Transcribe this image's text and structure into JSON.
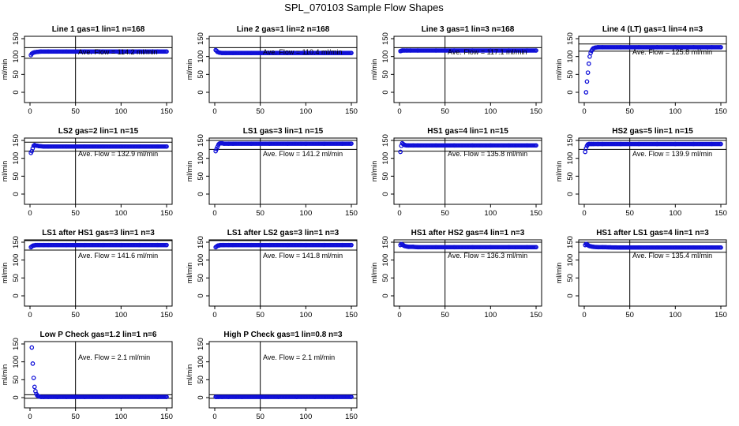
{
  "figure_title": "SPL_070103  Sample Flow Shapes",
  "chart_data": [
    {
      "type": "scatter",
      "title": "Line 1 gas=1 lin=1 n=168",
      "ylabel": "ml/min",
      "xlim": [
        0,
        150
      ],
      "ylim": [
        0,
        150
      ],
      "x_ticks": [
        0,
        50,
        100,
        150
      ],
      "y_ticks": [
        0,
        50,
        100,
        150
      ],
      "vline_x": 50,
      "hlines": [
        95,
        125
      ],
      "annotation": "Ave. Flow =  114.2  ml/min",
      "series": [
        {
          "x": [
            1,
            2,
            3,
            5,
            8,
            12,
            20,
            40,
            60,
            80,
            100,
            120,
            140,
            150
          ],
          "y": [
            104,
            108,
            110,
            112,
            113,
            114,
            114,
            114,
            114,
            114,
            114,
            114,
            114,
            114
          ]
        }
      ]
    },
    {
      "type": "scatter",
      "title": "Line 2 gas=1 lin=2 n=168",
      "ylabel": "ml/min",
      "xlim": [
        0,
        150
      ],
      "ylim": [
        0,
        150
      ],
      "x_ticks": [
        0,
        50,
        100,
        150
      ],
      "y_ticks": [
        0,
        50,
        100,
        150
      ],
      "vline_x": 50,
      "hlines": [
        95,
        125
      ],
      "annotation": "Ave. Flow =  110.4  ml/min",
      "series": [
        {
          "x": [
            1,
            2,
            3,
            5,
            8,
            12,
            20,
            40,
            60,
            80,
            100,
            120,
            140,
            150
          ],
          "y": [
            118,
            116,
            113,
            111,
            110,
            110,
            110,
            110,
            110,
            110,
            110,
            110,
            110,
            110
          ]
        }
      ]
    },
    {
      "type": "scatter",
      "title": "Line 3 gas=1 lin=3 n=168",
      "ylabel": "ml/min",
      "xlim": [
        0,
        150
      ],
      "ylim": [
        0,
        150
      ],
      "x_ticks": [
        0,
        50,
        100,
        150
      ],
      "y_ticks": [
        0,
        50,
        100,
        150
      ],
      "vline_x": 50,
      "hlines": [
        95,
        125
      ],
      "annotation": "Ave. Flow =  117.1  ml/min",
      "series": [
        {
          "x": [
            1,
            2,
            3,
            5,
            8,
            12,
            20,
            40,
            60,
            80,
            100,
            120,
            140,
            150
          ],
          "y": [
            115,
            116,
            117,
            117,
            117,
            117,
            117,
            117,
            117,
            117,
            117,
            117,
            117,
            117
          ]
        }
      ]
    },
    {
      "type": "scatter",
      "title": "Line 4 (LT) gas=1 lin=4 n=3",
      "ylabel": "ml/min",
      "xlim": [
        0,
        150
      ],
      "ylim": [
        0,
        150
      ],
      "x_ticks": [
        0,
        50,
        100,
        150
      ],
      "y_ticks": [
        0,
        50,
        100,
        150
      ],
      "vline_x": 50,
      "hlines": [
        115,
        135
      ],
      "annotation": "Ave. Flow =  125.8  ml/min",
      "series": [
        {
          "x": [
            2,
            3,
            4,
            5,
            6,
            7,
            8,
            9,
            10,
            12,
            15,
            20,
            40,
            60,
            80,
            100,
            120,
            140,
            150
          ],
          "y": [
            0,
            30,
            55,
            80,
            100,
            110,
            116,
            120,
            123,
            125,
            126,
            126,
            126,
            126,
            126,
            126,
            126,
            126,
            126
          ]
        }
      ]
    },
    {
      "type": "scatter",
      "title": "LS2 gas=2 lin=1 n=15",
      "ylabel": "ml/min",
      "xlim": [
        0,
        150
      ],
      "ylim": [
        0,
        150
      ],
      "x_ticks": [
        0,
        50,
        100,
        150
      ],
      "y_ticks": [
        0,
        50,
        100,
        150
      ],
      "vline_x": 50,
      "hlines": [
        120,
        145
      ],
      "annotation": "Ave. Flow =  132.9  ml/min",
      "series": [
        {
          "x": [
            1,
            2,
            3,
            4,
            5,
            6,
            8,
            10,
            15,
            20,
            40,
            60,
            80,
            100,
            120,
            140,
            150
          ],
          "y": [
            115,
            120,
            128,
            135,
            137,
            136,
            135,
            134,
            133,
            133,
            133,
            133,
            133,
            133,
            133,
            133,
            133
          ]
        }
      ]
    },
    {
      "type": "scatter",
      "title": "LS1 gas=3 lin=1 n=15",
      "ylabel": "ml/min",
      "xlim": [
        0,
        150
      ],
      "ylim": [
        0,
        150
      ],
      "x_ticks": [
        0,
        50,
        100,
        150
      ],
      "y_ticks": [
        0,
        50,
        100,
        150
      ],
      "vline_x": 50,
      "hlines": [
        125,
        150
      ],
      "annotation": "Ave. Flow =  141.2  ml/min",
      "series": [
        {
          "x": [
            1,
            2,
            3,
            4,
            5,
            6,
            8,
            10,
            15,
            20,
            40,
            60,
            80,
            100,
            120,
            140,
            150
          ],
          "y": [
            120,
            126,
            132,
            138,
            141,
            142,
            142,
            141,
            141,
            141,
            141,
            141,
            141,
            141,
            141,
            141,
            141
          ]
        }
      ]
    },
    {
      "type": "scatter",
      "title": "HS1 gas=4 lin=1 n=15",
      "ylabel": "ml/min",
      "xlim": [
        0,
        150
      ],
      "ylim": [
        0,
        150
      ],
      "x_ticks": [
        0,
        50,
        100,
        150
      ],
      "y_ticks": [
        0,
        50,
        100,
        150
      ],
      "vline_x": 50,
      "hlines": [
        120,
        150
      ],
      "annotation": "Ave. Flow =  135.8  ml/min",
      "series": [
        {
          "x": [
            1,
            2,
            3,
            4,
            5,
            6,
            8,
            10,
            15,
            20,
            40,
            60,
            80,
            100,
            120,
            140,
            150
          ],
          "y": [
            118,
            135,
            142,
            140,
            138,
            137,
            136,
            136,
            136,
            136,
            136,
            136,
            136,
            136,
            136,
            136,
            136
          ]
        }
      ]
    },
    {
      "type": "scatter",
      "title": "HS2 gas=5 lin=1 n=15",
      "ylabel": "ml/min",
      "xlim": [
        0,
        150
      ],
      "ylim": [
        0,
        150
      ],
      "x_ticks": [
        0,
        50,
        100,
        150
      ],
      "y_ticks": [
        0,
        50,
        100,
        150
      ],
      "vline_x": 50,
      "hlines": [
        125,
        150
      ],
      "annotation": "Ave. Flow =  139.9  ml/min",
      "series": [
        {
          "x": [
            1,
            2,
            3,
            4,
            5,
            6,
            8,
            10,
            15,
            20,
            40,
            60,
            80,
            100,
            120,
            140,
            150
          ],
          "y": [
            118,
            128,
            135,
            139,
            140,
            140,
            140,
            140,
            140,
            140,
            140,
            140,
            140,
            140,
            140,
            140,
            140
          ]
        }
      ]
    },
    {
      "type": "scatter",
      "title": "LS1 after HS1 gas=3 lin=1 n=3",
      "ylabel": "ml/min",
      "xlim": [
        0,
        150
      ],
      "ylim": [
        0,
        150
      ],
      "x_ticks": [
        0,
        50,
        100,
        150
      ],
      "y_ticks": [
        0,
        50,
        100,
        150
      ],
      "vline_x": 50,
      "hlines": [
        128,
        155
      ],
      "annotation": "Ave. Flow =  141.6  ml/min",
      "series": [
        {
          "x": [
            1,
            2,
            3,
            4,
            5,
            6,
            8,
            10,
            15,
            20,
            40,
            60,
            80,
            100,
            120,
            140,
            150
          ],
          "y": [
            136,
            138,
            140,
            141,
            141,
            142,
            142,
            142,
            142,
            142,
            142,
            142,
            142,
            142,
            142,
            142,
            142
          ]
        }
      ]
    },
    {
      "type": "scatter",
      "title": "LS1 after LS2 gas=3 lin=1 n=3",
      "ylabel": "ml/min",
      "xlim": [
        0,
        150
      ],
      "ylim": [
        0,
        150
      ],
      "x_ticks": [
        0,
        50,
        100,
        150
      ],
      "y_ticks": [
        0,
        50,
        100,
        150
      ],
      "vline_x": 50,
      "hlines": [
        128,
        155
      ],
      "annotation": "Ave. Flow =  141.8  ml/min",
      "series": [
        {
          "x": [
            1,
            2,
            3,
            4,
            5,
            6,
            8,
            10,
            15,
            20,
            40,
            60,
            80,
            100,
            120,
            140,
            150
          ],
          "y": [
            136,
            138,
            140,
            141,
            141,
            142,
            142,
            142,
            142,
            142,
            142,
            142,
            142,
            142,
            142,
            142,
            142
          ]
        }
      ]
    },
    {
      "type": "scatter",
      "title": "HS1 after HS2 gas=4 lin=1 n=3",
      "ylabel": "ml/min",
      "xlim": [
        0,
        150
      ],
      "ylim": [
        0,
        150
      ],
      "x_ticks": [
        0,
        50,
        100,
        150
      ],
      "y_ticks": [
        0,
        50,
        100,
        150
      ],
      "vline_x": 50,
      "hlines": [
        122,
        150
      ],
      "annotation": "Ave. Flow =  136.3  ml/min",
      "series": [
        {
          "x": [
            1,
            2,
            3,
            4,
            5,
            6,
            8,
            10,
            15,
            20,
            40,
            60,
            80,
            100,
            120,
            140,
            150
          ],
          "y": [
            142,
            145,
            144,
            142,
            140,
            139,
            138,
            137,
            137,
            136,
            136,
            136,
            136,
            136,
            136,
            136,
            136
          ]
        }
      ]
    },
    {
      "type": "scatter",
      "title": "HS1 after LS1 gas=4 lin=1 n=3",
      "ylabel": "ml/min",
      "xlim": [
        0,
        150
      ],
      "ylim": [
        0,
        150
      ],
      "x_ticks": [
        0,
        50,
        100,
        150
      ],
      "y_ticks": [
        0,
        50,
        100,
        150
      ],
      "vline_x": 50,
      "hlines": [
        122,
        150
      ],
      "annotation": "Ave. Flow =  135.4  ml/min",
      "series": [
        {
          "x": [
            1,
            2,
            3,
            4,
            5,
            6,
            8,
            10,
            15,
            20,
            40,
            60,
            80,
            100,
            120,
            140,
            150
          ],
          "y": [
            142,
            145,
            144,
            142,
            140,
            139,
            138,
            137,
            136,
            136,
            135,
            135,
            135,
            135,
            135,
            135,
            135
          ]
        }
      ]
    },
    {
      "type": "scatter",
      "title": "Low P Check gas=1.2 lin=1 n=6",
      "ylabel": "ml/min",
      "xlim": [
        0,
        150
      ],
      "ylim": [
        0,
        150
      ],
      "x_ticks": [
        0,
        50,
        100,
        150
      ],
      "y_ticks": [
        0,
        50,
        100,
        150
      ],
      "vline_x": 50,
      "hlines": [
        -2,
        8
      ],
      "annotation": "Ave. Flow =  2.1  ml/min",
      "series": [
        {
          "x": [
            2,
            3,
            4,
            5,
            6,
            7,
            8,
            9,
            10,
            12,
            15,
            20,
            30,
            40,
            60,
            80,
            100,
            120,
            140,
            150
          ],
          "y": [
            140,
            95,
            55,
            30,
            18,
            10,
            6,
            4,
            3,
            2,
            2,
            2,
            2,
            2,
            2,
            2,
            2,
            2,
            2,
            2
          ]
        }
      ]
    },
    {
      "type": "scatter",
      "title": "High P Check gas=1 lin=0.8 n=3",
      "ylabel": "ml/min",
      "xlim": [
        0,
        150
      ],
      "ylim": [
        0,
        150
      ],
      "x_ticks": [
        0,
        50,
        100,
        150
      ],
      "y_ticks": [
        0,
        50,
        100,
        150
      ],
      "vline_x": 50,
      "hlines": [
        -2,
        8
      ],
      "annotation": "Ave. Flow =  2.1  ml/min",
      "series": [
        {
          "x": [
            1,
            2,
            4,
            8,
            15,
            30,
            50,
            70,
            90,
            110,
            130,
            150
          ],
          "y": [
            2,
            2,
            2,
            2,
            2,
            2,
            2,
            2,
            2,
            2,
            2,
            2
          ]
        }
      ]
    }
  ],
  "colors": {
    "points": "#1010d8",
    "lines": "#000000"
  }
}
